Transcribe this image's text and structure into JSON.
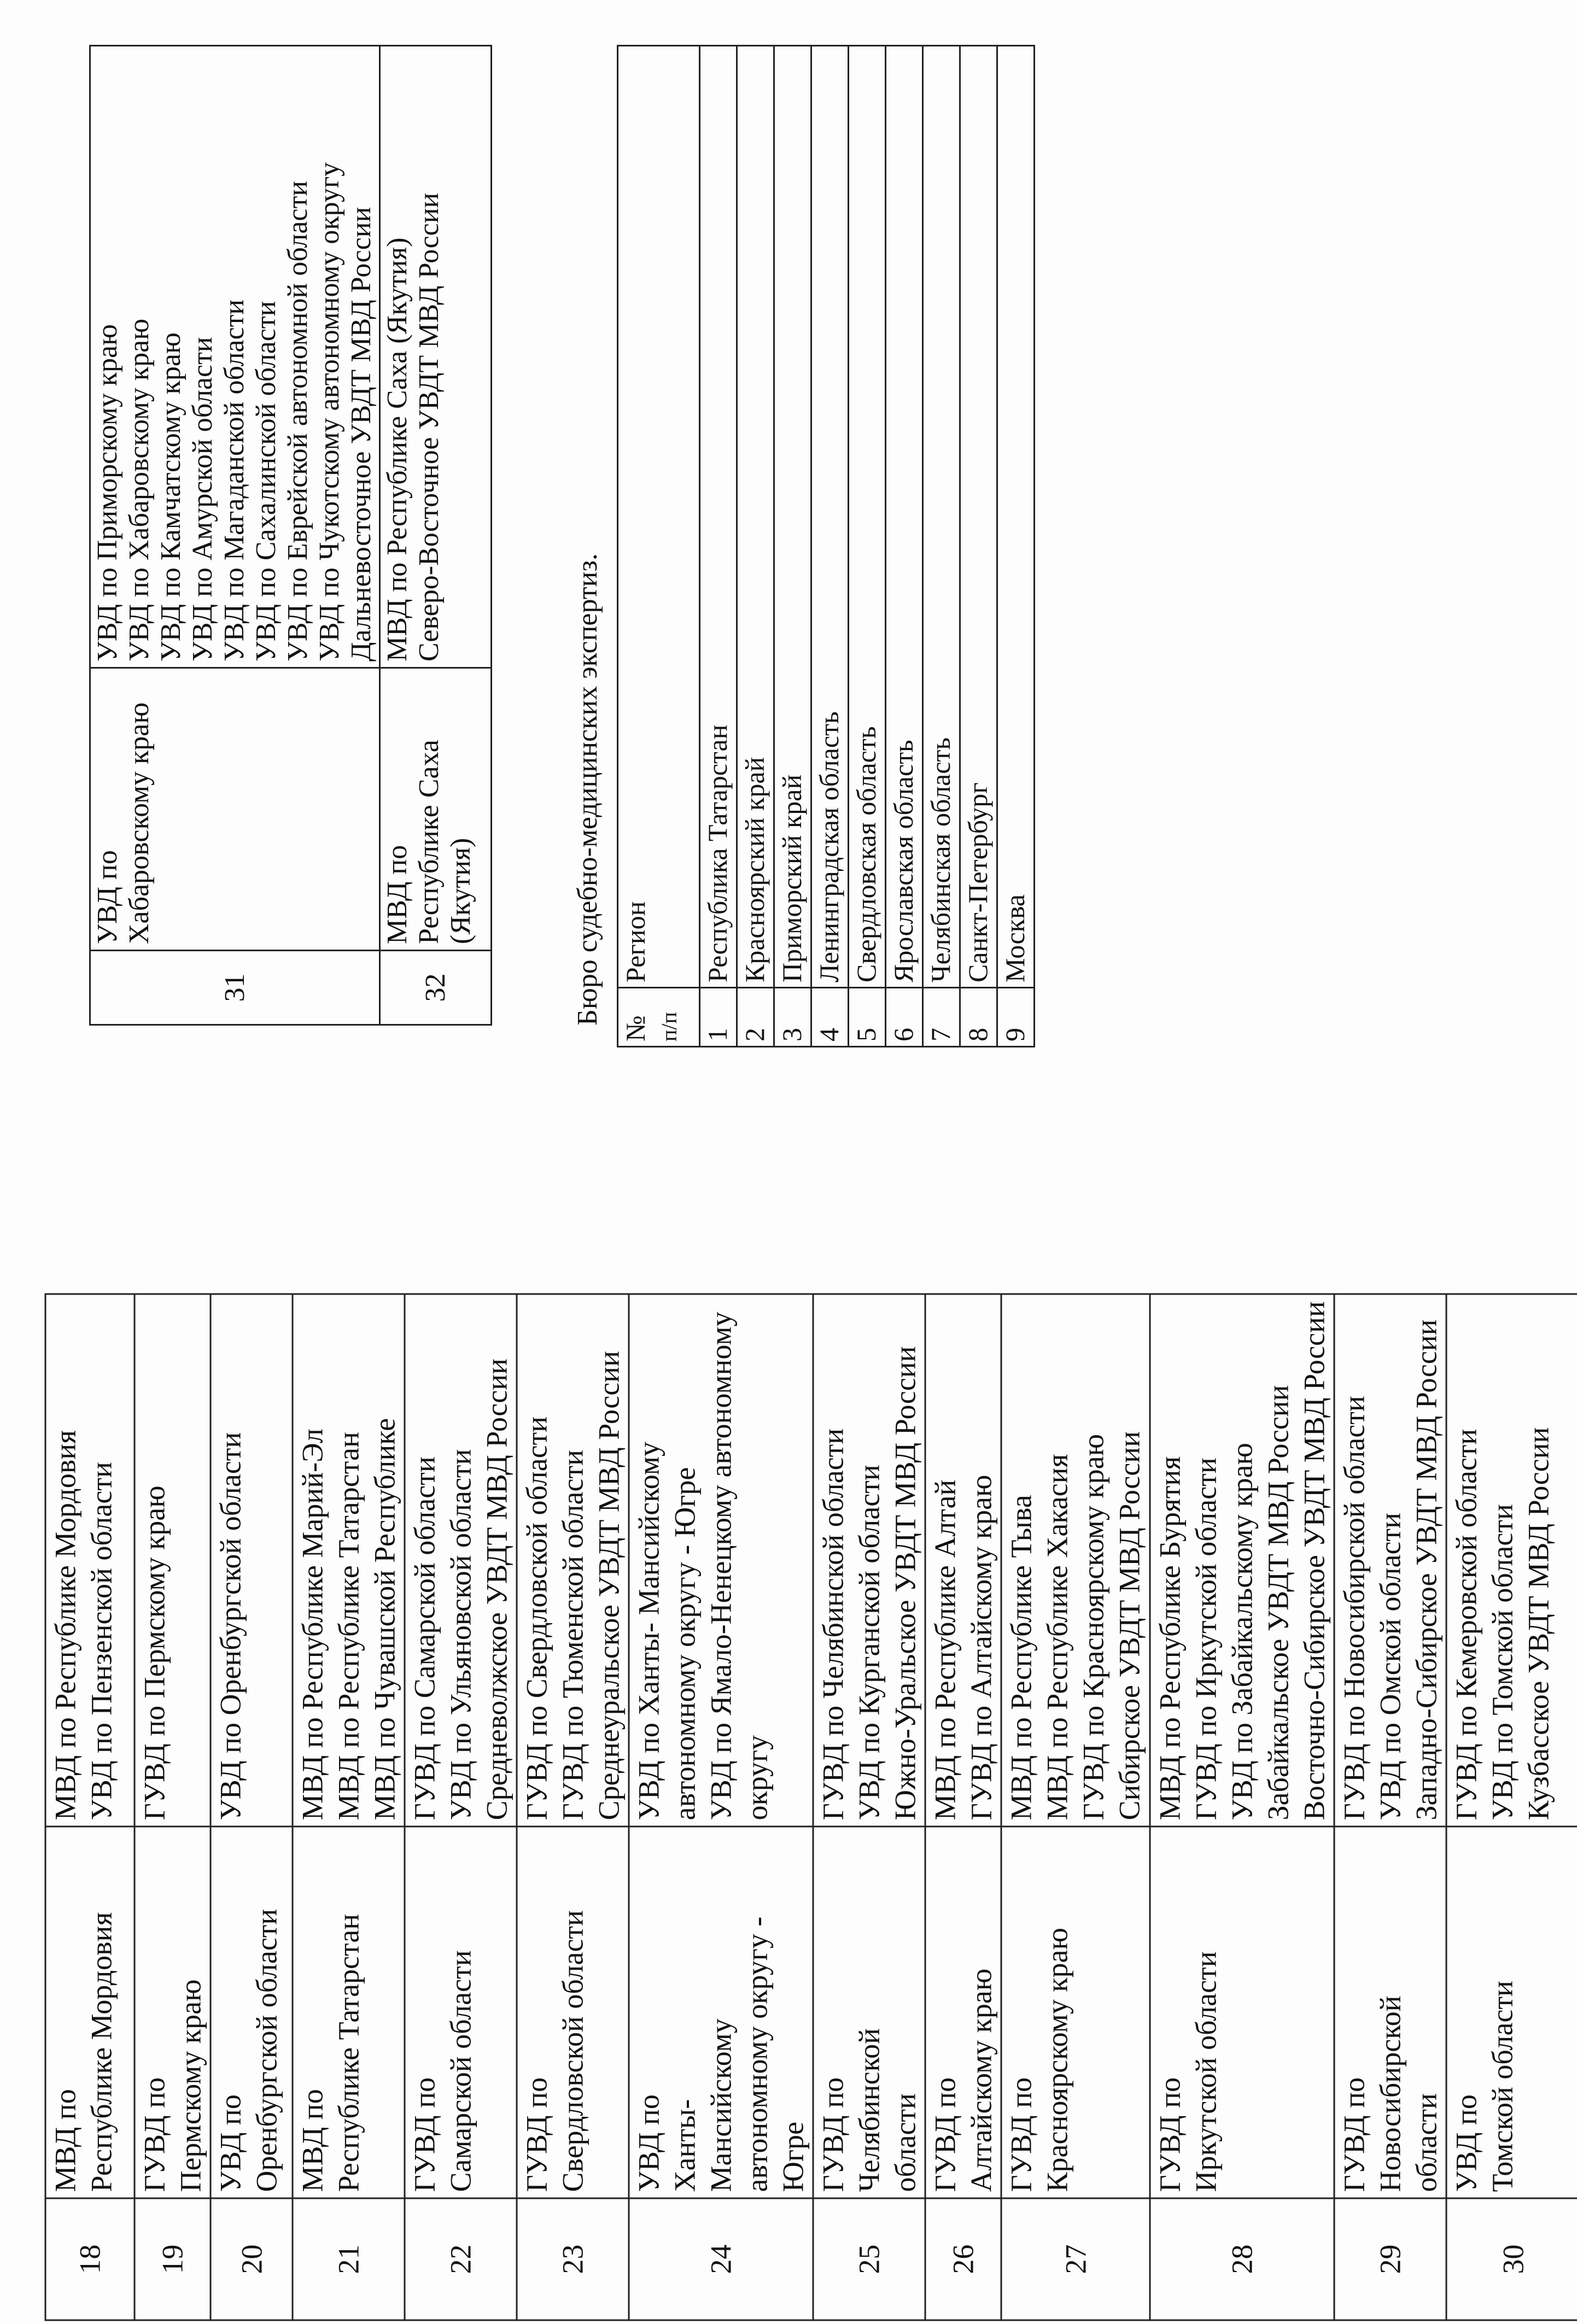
{
  "table_mvd_part1": {
    "rows": [
      {
        "num": "18",
        "name": [
          "МВД по",
          "Республике Мордовия"
        ],
        "units": [
          "МВД по Республике Мордовия",
          "УВД по Пензенской области"
        ]
      },
      {
        "num": "19",
        "name": [
          "ГУВД по",
          "Пермскому краю"
        ],
        "units": [
          "ГУВД по Пермскому краю"
        ]
      },
      {
        "num": "20",
        "name": [
          "УВД по",
          "Оренбургской области"
        ],
        "units": [
          "УВД по Оренбургской области"
        ]
      },
      {
        "num": "21",
        "name": [
          "МВД по",
          "Республике Татарстан"
        ],
        "units": [
          "МВД по Республике Марий-Эл",
          "МВД по Республике Татарстан",
          "МВД по Чувашской Республике"
        ]
      },
      {
        "num": "22",
        "name": [
          "ГУВД по",
          "Самарской области"
        ],
        "units": [
          "ГУВД по Самарской области",
          "УВД по Ульяновской области",
          "Средневолжское УВДТ МВД России"
        ]
      },
      {
        "num": "23",
        "name": [
          "ГУВД по",
          "Свердловской области"
        ],
        "units": [
          "ГУВД по Свердловской области",
          "ГУВД по Тюменской области",
          "Среднеуральское УВДТ МВД России"
        ]
      },
      {
        "num": "24",
        "name": [
          "УВД по",
          "Ханты-",
          "Мансийскому",
          "автономному округу -",
          "Югре"
        ],
        "units": [
          "УВД по Ханты- Мансийскому",
          "автономному округу - Югре",
          "УВД по Ямало-Ненецкому автономному",
          "округу"
        ]
      },
      {
        "num": "25",
        "name": [
          "ГУВД по",
          "Челябинской",
          "области"
        ],
        "units": [
          "ГУВД по Челябинской области",
          "УВД по Курганской области",
          "Южно-Уральское УВДТ МВД России"
        ]
      },
      {
        "num": "26",
        "name": [
          "ГУВД по",
          "Алтайскому краю"
        ],
        "units": [
          "МВД по Республике Алтай",
          "ГУВД по Алтайскому краю"
        ]
      },
      {
        "num": "27",
        "name": [
          "ГУВД по",
          "Красноярскому краю"
        ],
        "units": [
          "МВД по Республике Тыва",
          "МВД по Республике Хакасия",
          "ГУВД по Красноярскому краю",
          "Сибирское УВДТ МВД России"
        ]
      },
      {
        "num": "28",
        "name": [
          "ГУВД по",
          "Иркутской области"
        ],
        "units": [
          "МВД по Республике Бурятия",
          "ГУВД по Иркутской области",
          "УВД по Забайкальскому краю",
          "Забайкальское УВДТ МВД России",
          "Восточно-Сибирское УВДТ МВД России"
        ]
      },
      {
        "num": "29",
        "name": [
          "ГУВД по",
          "Новосибирской",
          "области"
        ],
        "units": [
          "ГУВД по Новосибирской области",
          "УВД по Омской области",
          "Западно-Сибирское УВДТ МВД России"
        ]
      },
      {
        "num": "30",
        "name": [
          "УВД по",
          "Томской области"
        ],
        "units": [
          "ГУВД по Кемеровской области",
          "УВД по Томской области",
          "Кузбасское УВДТ МВД России"
        ]
      }
    ]
  },
  "table_mvd_part2": {
    "rows": [
      {
        "num": "31",
        "name": [
          "УВД по",
          "Хабаровскому краю"
        ],
        "units": [
          "УВД по Приморскому краю",
          "УВД по Хабаровскому краю",
          "УВД по Камчатскому краю",
          "УВД по Амурской области",
          "УВД по Магаданской области",
          "УВД по Сахалинской области",
          "УВД по Еврейской автономной области",
          "УВД по Чукотскому автономному округу",
          "Дальневосточное УВДТ МВД России"
        ]
      },
      {
        "num": "32",
        "name": [
          "МВД по",
          "Республике Саха",
          "(Якутия)"
        ],
        "units": [
          "МВД по Республике Саха (Якутия)",
          "Северо-Восточное УВДТ МВД России"
        ]
      }
    ]
  },
  "forensic_section": {
    "heading": "Бюро судебно-медицинских экспертиз.",
    "header": {
      "num": [
        "№",
        "п/п"
      ],
      "region": "Регион"
    },
    "rows": [
      {
        "num": "1",
        "region": "Республика Татарстан"
      },
      {
        "num": "2",
        "region": "Красноярский край"
      },
      {
        "num": "3",
        "region": "Приморский край"
      },
      {
        "num": "4",
        "region": "Ленинградская область"
      },
      {
        "num": "5",
        "region": "Свердловская область"
      },
      {
        "num": "6",
        "region": "Ярославская область"
      },
      {
        "num": "7",
        "region": "Челябинская область"
      },
      {
        "num": "8",
        "region": "Санкт-Петербург"
      },
      {
        "num": "9",
        "region": "Москва"
      }
    ]
  }
}
